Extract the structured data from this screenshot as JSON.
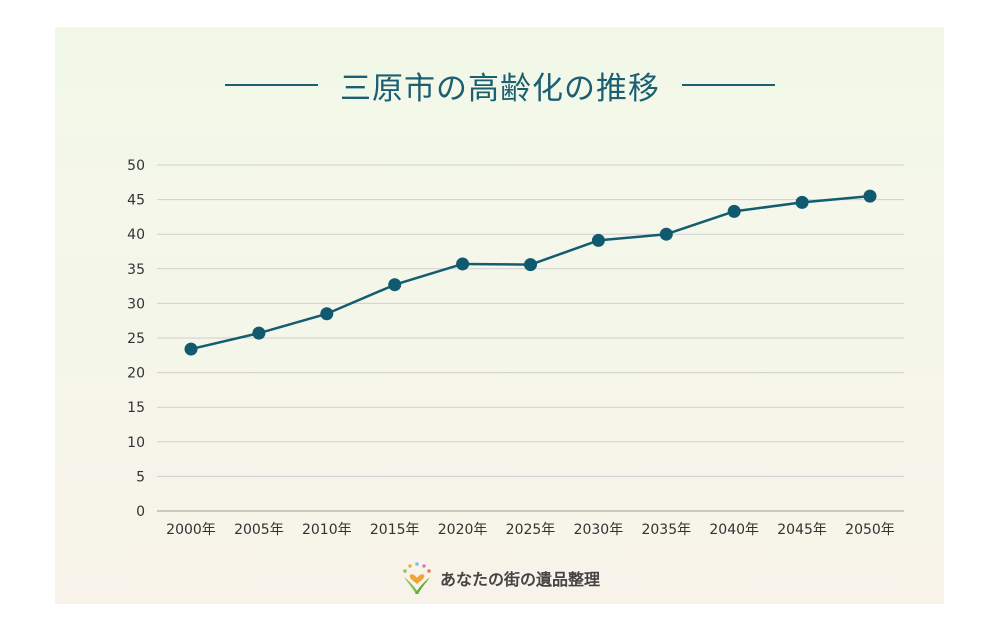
{
  "header": {
    "title": "三原市の高齢化の推移"
  },
  "footer": {
    "brand": "あなたの街の遺品整理"
  },
  "colors": {
    "line": "#145d70",
    "marker": "#0f5a6e",
    "grid": "#cfcfcf",
    "title": "#1c5f73"
  },
  "chart_data": {
    "type": "line",
    "title": "三原市の高齢化の推移",
    "categories": [
      "2000年",
      "2005年",
      "2010年",
      "2015年",
      "2020年",
      "2025年",
      "2030年",
      "2035年",
      "2040年",
      "2045年",
      "2050年"
    ],
    "series": [
      {
        "values": [
          23.4,
          25.7,
          28.5,
          32.7,
          35.7,
          35.6,
          39.1,
          40.0,
          43.3,
          44.6,
          45.5
        ]
      }
    ],
    "ylim": [
      0,
      50
    ],
    "yticks": [
      0,
      5,
      10,
      15,
      20,
      25,
      30,
      35,
      40,
      45,
      50
    ],
    "grid": true,
    "legend": "none"
  }
}
